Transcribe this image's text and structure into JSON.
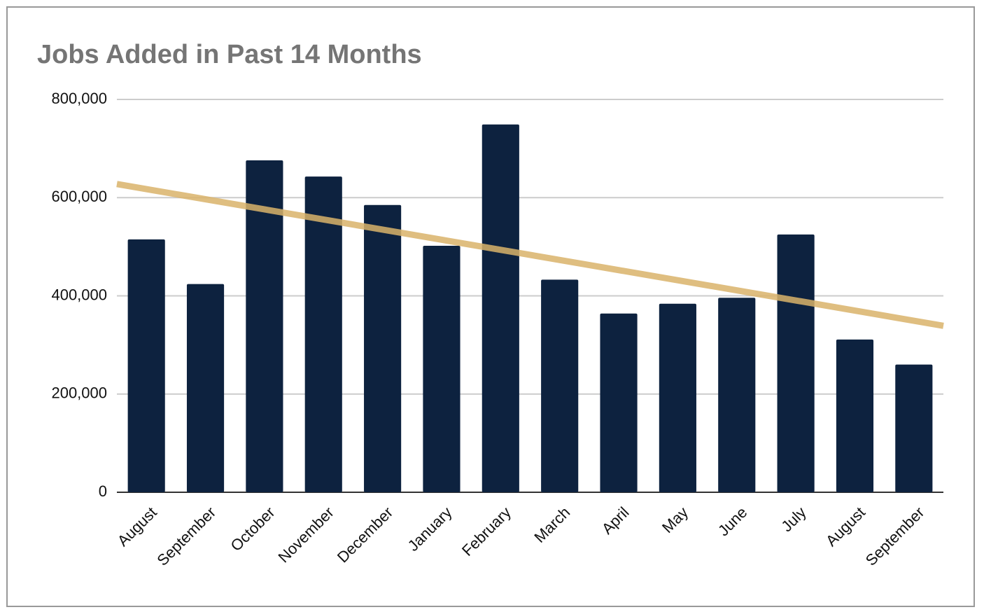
{
  "chart_data": {
    "type": "bar",
    "title": "Jobs Added in Past 14 Months",
    "categories": [
      "August",
      "September",
      "October",
      "November",
      "December",
      "January",
      "February",
      "March",
      "April",
      "May",
      "June",
      "July",
      "August",
      "September"
    ],
    "values": [
      515000,
      424000,
      676000,
      643000,
      585000,
      502000,
      749000,
      433000,
      364000,
      384000,
      396000,
      525000,
      311000,
      260000
    ],
    "color": "#0d223f",
    "ylim": [
      0,
      800000
    ],
    "yticks": [
      {
        "value": 0,
        "label": "0"
      },
      {
        "value": 200000,
        "label": "200,000"
      },
      {
        "value": 400000,
        "label": "400,000"
      },
      {
        "value": 600000,
        "label": "600,000"
      },
      {
        "value": 800000,
        "label": "800,000"
      }
    ],
    "grid": true,
    "trendline": true,
    "trendline_color": "#d9b36a"
  }
}
